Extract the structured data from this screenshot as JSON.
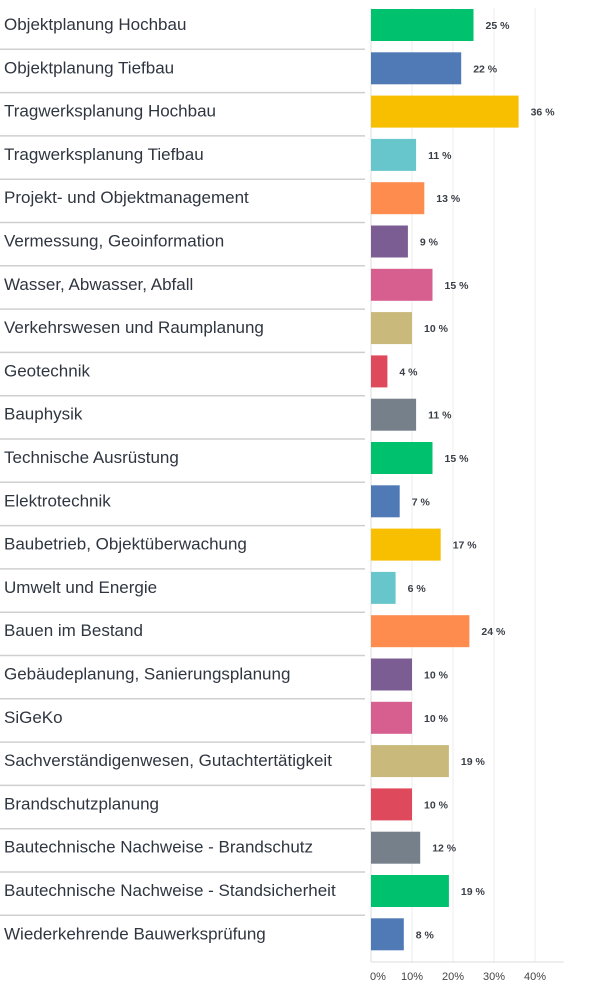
{
  "chart_data": {
    "type": "bar",
    "orientation": "horizontal",
    "categories": [
      "Objektplanung Hochbau",
      "Objektplanung Tiefbau",
      "Tragwerksplanung Hochbau",
      "Tragwerksplanung Tiefbau",
      "Projekt- und Objektmanagement",
      "Vermessung, Geoinformation",
      "Wasser, Abwasser, Abfall",
      "Verkehrswesen und Raumplanung",
      "Geotechnik",
      "Bauphysik",
      "Technische Ausrüstung",
      "Elektrotechnik",
      "Baubetrieb, Objektüberwachung",
      "Umwelt und Energie",
      "Bauen im Bestand",
      "Gebäudeplanung, Sanierungsplanung",
      "SiGeKo",
      "Sachverständigenwesen, Gutachtertätigkeit",
      "Brandschutzplanung",
      "Bautechnische Nachweise - Brandschutz",
      "Bautechnische Nachweise - Standsicherheit",
      " Wiederkehrende Bauwerksprüfung"
    ],
    "values": [
      25,
      22,
      36,
      11,
      13,
      9,
      15,
      10,
      4,
      11,
      15,
      7,
      17,
      6,
      24,
      10,
      10,
      19,
      10,
      12,
      19,
      8
    ],
    "value_labels": [
      "25 %",
      "22 %",
      "36 %",
      "11 %",
      "13 %",
      "9 %",
      "15 %",
      "10 %",
      "4 %",
      "11 %",
      "15 %",
      "7 %",
      "17 %",
      "6 %",
      "24 %",
      "10 %",
      "10 %",
      "19 %",
      "10 %",
      "12 %",
      "19 %",
      "8 %"
    ],
    "xlim": [
      0,
      47
    ],
    "x_ticks": [
      "0%",
      "10%",
      "20%",
      "30%",
      "40%"
    ],
    "x_tick_values": [
      0,
      10,
      20,
      30,
      40
    ],
    "grid": true,
    "colors": [
      "#00c16e",
      "#4f7ab5",
      "#f8be00",
      "#67c6cc",
      "#ff8c4f",
      "#7b5c93",
      "#d65f8f",
      "#c9b97a",
      "#de4a5c",
      "#76808a"
    ]
  }
}
